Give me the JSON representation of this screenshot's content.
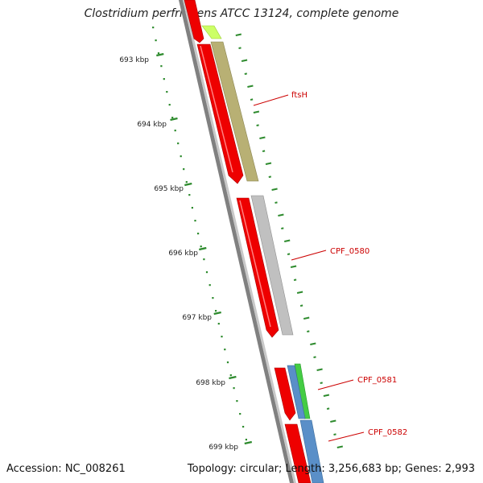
{
  "title": "Clostridium perfringens ATCC 13124, complete genome",
  "footer": {
    "accession": "Accession: NC_008261",
    "stats": "Topology: circular; Length: 3,256,683 bp; Genes: 2,993"
  },
  "ruler": {
    "labels": [
      "693 kbp",
      "694 kbp",
      "695 kbp",
      "696 kbp",
      "697 kbp",
      "698 kbp",
      "699 kbp"
    ]
  },
  "genes": [
    {
      "label": "ftsH",
      "color": "#b8b074"
    },
    {
      "label": "CPF_0580",
      "color": "#c0c0c0"
    },
    {
      "label": "CPF_0581",
      "color": "#44cc44"
    },
    {
      "label": "CPF_0582",
      "color": "#5a8fc8"
    }
  ],
  "colors": {
    "cds_strand": "#ee0000",
    "backbone": "#7a7a7a",
    "ruler_ticks": "#2e8b2e",
    "label_text": "#cc0000",
    "top_fragment": "#ccff66"
  }
}
